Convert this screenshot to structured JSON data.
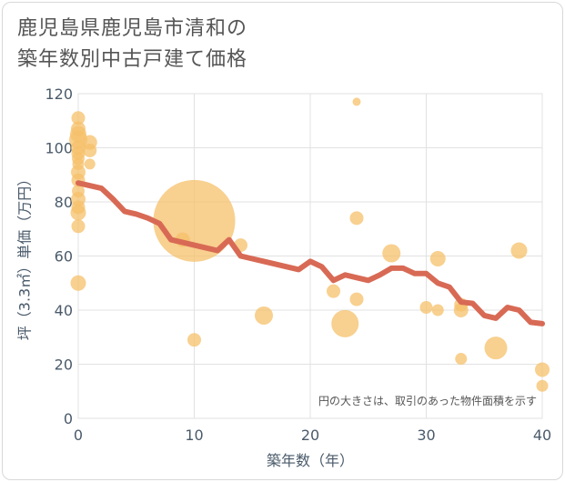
{
  "title_line1": "鹿児島県鹿児島市清和の",
  "title_line2": "築年数別中古戸建て価格",
  "chart_data": {
    "type": "scatter",
    "title": "鹿児島県鹿児島市清和の築年数別中古戸建て価格",
    "xlabel": "築年数（年）",
    "ylabel": "坪（3.3㎡）単価（万円）",
    "xlim": [
      0,
      40
    ],
    "ylim": [
      0,
      120
    ],
    "xticks": [
      0,
      10,
      20,
      30,
      40
    ],
    "yticks": [
      0,
      20,
      40,
      60,
      80,
      100,
      120
    ],
    "grid": true,
    "annotation": "円の大きさは、取引のあった物件面積を示す",
    "bubble_color": "#f5c06a",
    "line_color": "#d86a55",
    "points": [
      {
        "x": 0,
        "y": 111,
        "size": 1.5
      },
      {
        "x": 0,
        "y": 107,
        "size": 1.6
      },
      {
        "x": 0,
        "y": 105,
        "size": 1.8
      },
      {
        "x": 0,
        "y": 103,
        "size": 2.0
      },
      {
        "x": 0,
        "y": 100,
        "size": 1.6
      },
      {
        "x": 0,
        "y": 98,
        "size": 1.5
      },
      {
        "x": 0,
        "y": 96,
        "size": 1.4
      },
      {
        "x": 0,
        "y": 94,
        "size": 1.3
      },
      {
        "x": 0,
        "y": 91,
        "size": 1.6
      },
      {
        "x": 0,
        "y": 88,
        "size": 1.5
      },
      {
        "x": 0,
        "y": 84,
        "size": 1.4
      },
      {
        "x": 0,
        "y": 81,
        "size": 1.6
      },
      {
        "x": 0,
        "y": 78,
        "size": 1.5
      },
      {
        "x": 0,
        "y": 76,
        "size": 1.7
      },
      {
        "x": 0,
        "y": 71,
        "size": 1.5
      },
      {
        "x": 0,
        "y": 50,
        "size": 1.7
      },
      {
        "x": 1,
        "y": 102,
        "size": 1.6
      },
      {
        "x": 1,
        "y": 99,
        "size": 1.5
      },
      {
        "x": 1,
        "y": 94,
        "size": 1.2
      },
      {
        "x": 9,
        "y": 66,
        "size": 1.6
      },
      {
        "x": 10,
        "y": 73,
        "size": 9.0
      },
      {
        "x": 10,
        "y": 29,
        "size": 1.5
      },
      {
        "x": 14,
        "y": 64,
        "size": 1.5
      },
      {
        "x": 16,
        "y": 38,
        "size": 2.0
      },
      {
        "x": 22,
        "y": 47,
        "size": 1.5
      },
      {
        "x": 23,
        "y": 35,
        "size": 3.0
      },
      {
        "x": 24,
        "y": 117,
        "size": 0.9
      },
      {
        "x": 24,
        "y": 74,
        "size": 1.5
      },
      {
        "x": 24,
        "y": 44,
        "size": 1.5
      },
      {
        "x": 27,
        "y": 61,
        "size": 2.0
      },
      {
        "x": 30,
        "y": 41,
        "size": 1.4
      },
      {
        "x": 31,
        "y": 59,
        "size": 1.7
      },
      {
        "x": 31,
        "y": 40,
        "size": 1.3
      },
      {
        "x": 33,
        "y": 42,
        "size": 1.5
      },
      {
        "x": 33,
        "y": 40,
        "size": 1.6
      },
      {
        "x": 33,
        "y": 22,
        "size": 1.3
      },
      {
        "x": 36,
        "y": 26,
        "size": 2.5
      },
      {
        "x": 38,
        "y": 62,
        "size": 1.8
      },
      {
        "x": 40,
        "y": 18,
        "size": 1.6
      },
      {
        "x": 40,
        "y": 12,
        "size": 1.3
      }
    ],
    "trend": {
      "x": [
        0,
        2,
        3,
        4,
        5,
        6,
        7,
        8,
        9,
        10,
        11,
        12,
        13,
        14,
        15,
        16,
        17,
        18,
        19,
        20,
        21,
        22,
        23,
        24,
        25,
        26,
        27,
        28,
        29,
        30,
        31,
        32,
        33,
        34,
        35,
        36,
        37,
        38,
        39,
        40
      ],
      "y": [
        87,
        85,
        81,
        76.5,
        75.5,
        74,
        72,
        66,
        65,
        64,
        63,
        62,
        66,
        60,
        59,
        58,
        57,
        56,
        55,
        58,
        56,
        51,
        53,
        52,
        51,
        53,
        55.5,
        55.5,
        53.5,
        53.5,
        50,
        48.5,
        43,
        42.5,
        38,
        37,
        41,
        40,
        35.5,
        35
      ]
    }
  }
}
